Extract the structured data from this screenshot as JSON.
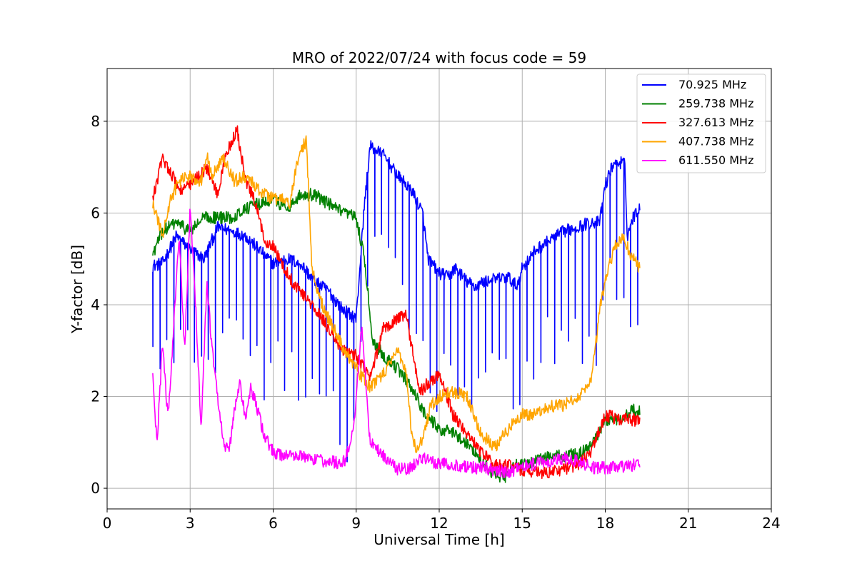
{
  "chart_data": {
    "type": "line",
    "title": "MRO of 2022/07/24 with focus code = 59",
    "xlabel": "Universal Time [h]",
    "ylabel": "Y-factor [dB]",
    "xlim": [
      0,
      24
    ],
    "ylim": [
      -0.45,
      9.15
    ],
    "xticks": [
      0,
      3,
      6,
      9,
      12,
      15,
      18,
      21,
      24
    ],
    "xtick_labels": [
      "0",
      "3",
      "6",
      "9",
      "12",
      "15",
      "18",
      "21",
      "24"
    ],
    "yticks": [
      0,
      2,
      4,
      6,
      8
    ],
    "ytick_labels": [
      "0",
      "2",
      "4",
      "6",
      "8"
    ],
    "grid": true,
    "legend_position": "top-right",
    "series": [
      {
        "name": " 70.925 MHz",
        "color": "#0000ff",
        "dips": true,
        "x": [
          1.65,
          2.0,
          2.5,
          3.0,
          3.5,
          4.0,
          4.5,
          5.0,
          5.5,
          6.0,
          6.5,
          7.0,
          7.5,
          8.0,
          8.5,
          9.0,
          9.3,
          9.5,
          10.0,
          10.5,
          11.0,
          11.4,
          11.6,
          12.0,
          12.3,
          12.6,
          13.0,
          13.3,
          13.6,
          14.0,
          14.5,
          14.8,
          15.0,
          15.5,
          16.0,
          16.5,
          17.0,
          17.5,
          17.8,
          18.0,
          18.3,
          18.7,
          18.8,
          19.0,
          19.25
        ],
        "y": [
          4.85,
          4.9,
          5.5,
          5.2,
          5.0,
          5.7,
          5.6,
          5.5,
          5.2,
          4.9,
          5.0,
          4.9,
          4.5,
          4.3,
          3.9,
          3.7,
          6.2,
          7.45,
          7.25,
          6.8,
          6.5,
          6.0,
          5.0,
          4.7,
          4.6,
          4.8,
          4.5,
          4.4,
          4.5,
          4.55,
          4.6,
          4.4,
          4.8,
          5.2,
          5.4,
          5.6,
          5.7,
          5.8,
          5.8,
          6.6,
          7.1,
          7.1,
          5.5,
          5.9,
          6.15
        ]
      },
      {
        "name": "259.738 MHz",
        "color": "#008000",
        "dips": false,
        "x": [
          1.65,
          2.0,
          2.5,
          3.0,
          3.5,
          4.0,
          4.5,
          5.0,
          5.5,
          6.0,
          6.5,
          7.0,
          7.5,
          8.0,
          8.5,
          9.0,
          9.3,
          9.6,
          10.0,
          10.5,
          11.0,
          11.5,
          12.0,
          12.5,
          13.0,
          13.5,
          14.0,
          14.3,
          14.7,
          15.0,
          15.5,
          16.0,
          16.5,
          17.0,
          17.5,
          18.0,
          18.5,
          19.0,
          19.25
        ],
        "y": [
          5.1,
          5.6,
          5.8,
          5.6,
          5.9,
          5.9,
          5.9,
          6.1,
          6.2,
          6.3,
          6.1,
          6.4,
          6.4,
          6.2,
          6.0,
          5.9,
          5.0,
          3.2,
          2.9,
          2.6,
          2.2,
          1.6,
          1.3,
          1.2,
          1.0,
          0.6,
          0.3,
          0.2,
          0.5,
          0.5,
          0.6,
          0.7,
          0.7,
          0.75,
          0.9,
          1.5,
          1.5,
          1.7,
          1.7
        ]
      },
      {
        "name": "327.613 MHz",
        "color": "#ff0000",
        "dips": false,
        "x": [
          1.65,
          2.0,
          2.3,
          2.6,
          3.0,
          3.3,
          3.6,
          4.0,
          4.3,
          4.7,
          5.0,
          5.3,
          5.7,
          6.0,
          6.3,
          6.7,
          7.0,
          7.5,
          8.0,
          8.5,
          9.0,
          9.5,
          10.0,
          10.5,
          10.8,
          11.0,
          11.3,
          11.6,
          12.0,
          12.5,
          13.0,
          13.5,
          14.0,
          14.5,
          15.0,
          15.5,
          16.0,
          16.5,
          17.0,
          17.5,
          18.0,
          18.5,
          19.0,
          19.25
        ],
        "y": [
          6.3,
          7.2,
          6.9,
          6.5,
          6.6,
          6.8,
          7.0,
          6.4,
          7.3,
          7.8,
          6.7,
          6.3,
          5.4,
          5.3,
          4.9,
          4.5,
          4.3,
          3.9,
          3.5,
          3.0,
          2.9,
          2.4,
          3.5,
          3.7,
          3.8,
          3.1,
          2.1,
          2.3,
          2.5,
          1.6,
          1.2,
          0.8,
          0.5,
          0.5,
          0.4,
          0.35,
          0.35,
          0.4,
          0.5,
          0.8,
          1.6,
          1.5,
          1.5,
          1.45
        ]
      },
      {
        "name": "407.738 MHz",
        "color": "#ffa500",
        "dips": false,
        "x": [
          1.65,
          2.0,
          2.3,
          2.6,
          3.0,
          3.4,
          3.6,
          3.8,
          4.2,
          4.6,
          5.0,
          5.5,
          6.0,
          6.3,
          6.6,
          6.9,
          7.2,
          7.4,
          7.7,
          8.0,
          8.5,
          9.0,
          9.5,
          10.0,
          10.5,
          10.8,
          11.0,
          11.2,
          11.4,
          11.7,
          12.0,
          12.5,
          13.0,
          13.5,
          14.0,
          14.5,
          15.0,
          15.5,
          16.0,
          16.5,
          17.0,
          17.5,
          17.8,
          18.0,
          18.3,
          18.6,
          19.0,
          19.25
        ],
        "y": [
          6.2,
          5.5,
          6.3,
          6.7,
          6.8,
          6.7,
          7.3,
          6.8,
          7.2,
          6.7,
          6.8,
          6.5,
          6.3,
          6.3,
          6.2,
          7.2,
          7.6,
          4.8,
          4.1,
          3.7,
          3.1,
          2.6,
          2.2,
          2.5,
          3.0,
          2.6,
          1.2,
          0.8,
          1.1,
          1.8,
          2.0,
          2.1,
          2.0,
          1.2,
          0.9,
          1.3,
          1.6,
          1.6,
          1.8,
          1.8,
          2.0,
          2.3,
          3.9,
          4.5,
          5.2,
          5.5,
          5.0,
          4.8
        ]
      },
      {
        "name": "611.550 MHz",
        "color": "#ff00ff",
        "dips": false,
        "x": [
          1.65,
          1.8,
          2.0,
          2.2,
          2.4,
          2.6,
          2.8,
          3.0,
          3.2,
          3.4,
          3.6,
          3.8,
          4.0,
          4.2,
          4.4,
          4.6,
          4.8,
          5.0,
          5.2,
          5.4,
          5.6,
          5.8,
          6.0,
          6.3,
          6.6,
          7.0,
          7.5,
          8.0,
          8.3,
          8.6,
          8.9,
          9.2,
          9.5,
          10.0,
          10.5,
          11.0,
          11.3,
          11.6,
          12.0,
          12.5,
          13.0,
          13.5,
          14.0,
          14.5,
          15.0,
          15.5,
          16.0,
          16.5,
          17.0,
          17.5,
          18.0,
          18.5,
          19.0,
          19.25
        ],
        "y": [
          2.5,
          0.9,
          3.2,
          1.5,
          3.5,
          5.5,
          3.0,
          6.1,
          4.0,
          1.2,
          4.5,
          3.0,
          2.0,
          1.0,
          0.8,
          1.7,
          2.3,
          1.5,
          2.2,
          1.8,
          1.3,
          1.0,
          0.8,
          0.7,
          0.75,
          0.7,
          0.6,
          0.6,
          0.55,
          0.6,
          1.3,
          3.5,
          1.0,
          0.7,
          0.4,
          0.45,
          0.7,
          0.6,
          0.55,
          0.5,
          0.45,
          0.45,
          0.4,
          0.35,
          0.45,
          0.55,
          0.6,
          0.65,
          0.6,
          0.45,
          0.45,
          0.45,
          0.5,
          0.55
        ]
      }
    ]
  }
}
